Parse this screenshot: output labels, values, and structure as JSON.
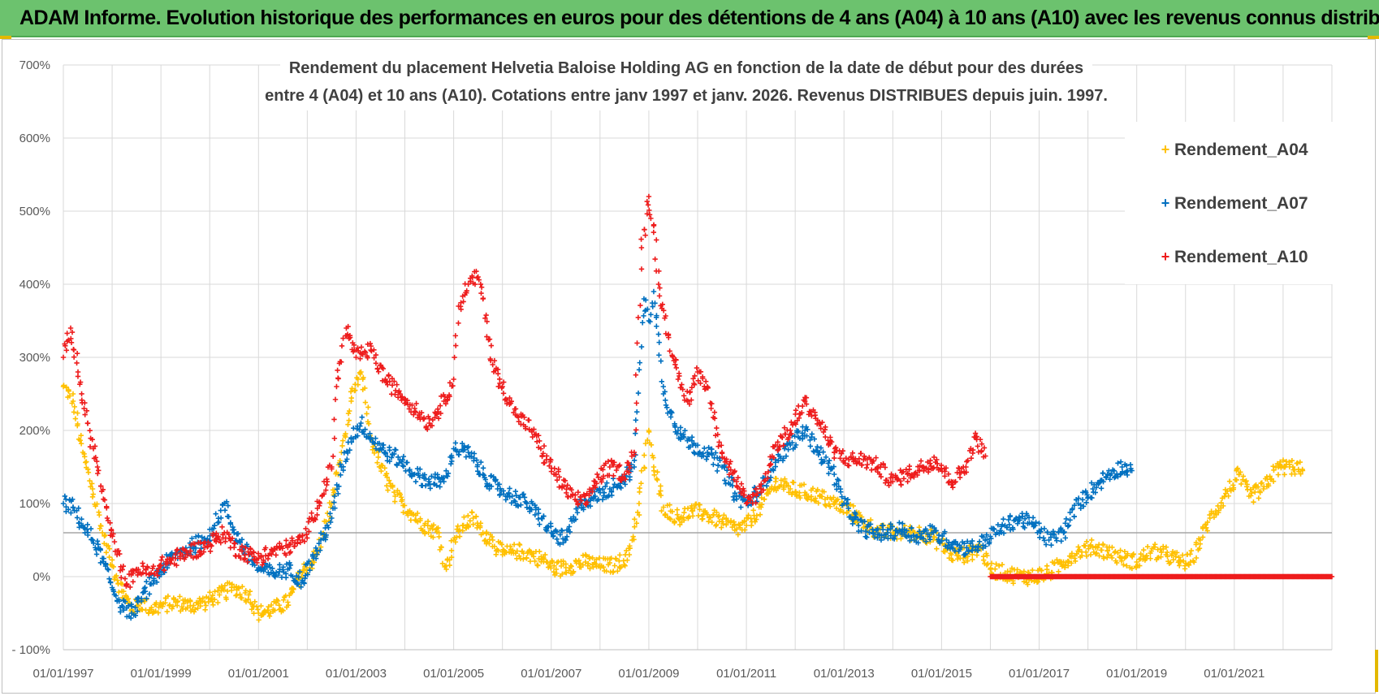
{
  "banner": {
    "title": "ADAM Informe. Evolution historique des performances en euros pour des détentions de 4 ans (A04) à 10 ans (A10) avec les revenus connus distribués"
  },
  "colors": {
    "banner_bg": "#6cc26e",
    "a04": "#ffc000",
    "a07": "#0070c0",
    "a10": "#ee1c1c",
    "grid": "#d9d9d9",
    "ref_line": "#a6a6a6"
  },
  "chart_data": {
    "type": "scatter",
    "title": "Rendement du placement Helvetia Baloise Holding AG en fonction de la date de début pour des durées",
    "subtitle": "entre 4 (A04) et 10 ans (A10).  Cotations entre janv 1997 et janv. 2026. Revenus DISTRIBUES depuis juin. 1997.",
    "xlabel": "",
    "ylabel": "",
    "xlim": [
      1997.0,
      2023.0
    ],
    "ylim": [
      -100,
      700
    ],
    "x_ticks": [
      "01/01/1997",
      "01/01/1999",
      "01/01/2001",
      "01/01/2003",
      "01/01/2005",
      "01/01/2007",
      "01/01/2009",
      "01/01/2011",
      "01/01/2013",
      "01/01/2015",
      "01/01/2017",
      "01/01/2019",
      "01/01/2021"
    ],
    "y_ticks": [
      "- 100%",
      "0%",
      "100%",
      "200%",
      "300%",
      "400%",
      "500%",
      "600%",
      "700%"
    ],
    "y_tick_values": [
      -100,
      0,
      100,
      200,
      300,
      400,
      500,
      600,
      700
    ],
    "reference_line_y": 60,
    "grid": true,
    "marker": "+",
    "legend_position": "top-right",
    "series": [
      {
        "name": "Rendement_A04",
        "color": "#ffc000",
        "points": [
          [
            1997.0,
            260
          ],
          [
            1997.2,
            240
          ],
          [
            1997.4,
            170
          ],
          [
            1997.6,
            120
          ],
          [
            1997.8,
            60
          ],
          [
            1998.0,
            15
          ],
          [
            1998.2,
            -20
          ],
          [
            1998.4,
            -45
          ],
          [
            1998.6,
            -35
          ],
          [
            1998.8,
            -45
          ],
          [
            1999.0,
            -40
          ],
          [
            1999.3,
            -35
          ],
          [
            1999.6,
            -40
          ],
          [
            1999.9,
            -35
          ],
          [
            2000.2,
            -25
          ],
          [
            2000.5,
            -15
          ],
          [
            2000.8,
            -25
          ],
          [
            2001.0,
            -50
          ],
          [
            2001.3,
            -45
          ],
          [
            2001.6,
            -35
          ],
          [
            2001.9,
            5
          ],
          [
            2002.2,
            30
          ],
          [
            2002.5,
            100
          ],
          [
            2002.7,
            170
          ],
          [
            2002.9,
            240
          ],
          [
            2003.1,
            280
          ],
          [
            2003.3,
            190
          ],
          [
            2003.5,
            150
          ],
          [
            2003.8,
            110
          ],
          [
            2004.1,
            90
          ],
          [
            2004.4,
            70
          ],
          [
            2004.7,
            60
          ],
          [
            2004.85,
            10
          ],
          [
            2005.0,
            50
          ],
          [
            2005.2,
            70
          ],
          [
            2005.4,
            80
          ],
          [
            2005.6,
            60
          ],
          [
            2005.8,
            50
          ],
          [
            2006.0,
            30
          ],
          [
            2006.3,
            35
          ],
          [
            2006.6,
            30
          ],
          [
            2006.9,
            20
          ],
          [
            2007.1,
            10
          ],
          [
            2007.4,
            15
          ],
          [
            2007.7,
            20
          ],
          [
            2008.0,
            15
          ],
          [
            2008.3,
            15
          ],
          [
            2008.6,
            30
          ],
          [
            2008.8,
            100
          ],
          [
            2009.0,
            200
          ],
          [
            2009.1,
            150
          ],
          [
            2009.3,
            95
          ],
          [
            2009.6,
            80
          ],
          [
            2009.9,
            90
          ],
          [
            2010.2,
            85
          ],
          [
            2010.5,
            75
          ],
          [
            2010.8,
            65
          ],
          [
            2011.0,
            70
          ],
          [
            2011.3,
            95
          ],
          [
            2011.6,
            130
          ],
          [
            2011.9,
            120
          ],
          [
            2012.2,
            115
          ],
          [
            2012.5,
            110
          ],
          [
            2012.8,
            100
          ],
          [
            2013.1,
            90
          ],
          [
            2013.4,
            75
          ],
          [
            2013.7,
            60
          ],
          [
            2014.0,
            60
          ],
          [
            2014.3,
            60
          ],
          [
            2014.6,
            60
          ],
          [
            2014.9,
            50
          ],
          [
            2015.2,
            30
          ],
          [
            2015.5,
            30
          ],
          [
            2015.8,
            40
          ],
          [
            2016.0,
            10
          ],
          [
            2016.3,
            5
          ],
          [
            2016.6,
            0
          ],
          [
            2016.9,
            0
          ],
          [
            2017.2,
            5
          ],
          [
            2017.5,
            20
          ],
          [
            2017.8,
            35
          ],
          [
            2018.1,
            40
          ],
          [
            2018.4,
            35
          ],
          [
            2018.7,
            25
          ],
          [
            2019.0,
            20
          ],
          [
            2019.3,
            35
          ],
          [
            2019.6,
            30
          ],
          [
            2019.9,
            20
          ],
          [
            2020.1,
            20
          ],
          [
            2020.3,
            50
          ],
          [
            2020.5,
            80
          ],
          [
            2020.8,
            110
          ],
          [
            2021.1,
            140
          ],
          [
            2021.3,
            110
          ],
          [
            2021.6,
            120
          ],
          [
            2021.9,
            150
          ],
          [
            2022.2,
            150
          ],
          [
            2022.4,
            145
          ]
        ]
      },
      {
        "name": "Rendement_A07",
        "color": "#0070c0",
        "points": [
          [
            1997.0,
            100
          ],
          [
            1997.2,
            95
          ],
          [
            1997.4,
            70
          ],
          [
            1997.6,
            50
          ],
          [
            1997.8,
            25
          ],
          [
            1998.0,
            -15
          ],
          [
            1998.2,
            -40
          ],
          [
            1998.4,
            -50
          ],
          [
            1998.6,
            -30
          ],
          [
            1998.8,
            -10
          ],
          [
            1999.0,
            10
          ],
          [
            1999.3,
            30
          ],
          [
            1999.6,
            40
          ],
          [
            1999.9,
            50
          ],
          [
            2000.1,
            70
          ],
          [
            2000.3,
            100
          ],
          [
            2000.5,
            60
          ],
          [
            2000.8,
            30
          ],
          [
            2001.0,
            10
          ],
          [
            2001.3,
            5
          ],
          [
            2001.6,
            10
          ],
          [
            2001.9,
            -5
          ],
          [
            2002.2,
            35
          ],
          [
            2002.5,
            80
          ],
          [
            2002.7,
            150
          ],
          [
            2002.9,
            190
          ],
          [
            2003.1,
            210
          ],
          [
            2003.3,
            190
          ],
          [
            2003.6,
            170
          ],
          [
            2003.9,
            160
          ],
          [
            2004.2,
            140
          ],
          [
            2004.5,
            130
          ],
          [
            2004.8,
            130
          ],
          [
            2005.0,
            175
          ],
          [
            2005.3,
            170
          ],
          [
            2005.6,
            140
          ],
          [
            2005.9,
            120
          ],
          [
            2006.2,
            110
          ],
          [
            2006.5,
            100
          ],
          [
            2006.8,
            80
          ],
          [
            2007.0,
            60
          ],
          [
            2007.3,
            50
          ],
          [
            2007.6,
            100
          ],
          [
            2007.9,
            110
          ],
          [
            2008.2,
            120
          ],
          [
            2008.5,
            135
          ],
          [
            2008.7,
            150
          ],
          [
            2008.9,
            380
          ],
          [
            2009.0,
            350
          ],
          [
            2009.1,
            390
          ],
          [
            2009.3,
            250
          ],
          [
            2009.6,
            200
          ],
          [
            2009.9,
            180
          ],
          [
            2010.2,
            170
          ],
          [
            2010.5,
            150
          ],
          [
            2010.8,
            110
          ],
          [
            2011.0,
            100
          ],
          [
            2011.3,
            120
          ],
          [
            2011.6,
            160
          ],
          [
            2011.9,
            180
          ],
          [
            2012.2,
            200
          ],
          [
            2012.5,
            170
          ],
          [
            2012.8,
            140
          ],
          [
            2013.0,
            100
          ],
          [
            2013.3,
            70
          ],
          [
            2013.6,
            60
          ],
          [
            2013.9,
            60
          ],
          [
            2014.2,
            65
          ],
          [
            2014.5,
            55
          ],
          [
            2014.8,
            60
          ],
          [
            2015.1,
            50
          ],
          [
            2015.4,
            40
          ],
          [
            2015.7,
            40
          ],
          [
            2016.0,
            55
          ],
          [
            2016.3,
            70
          ],
          [
            2016.6,
            80
          ],
          [
            2016.9,
            70
          ],
          [
            2017.2,
            50
          ],
          [
            2017.5,
            60
          ],
          [
            2017.8,
            100
          ],
          [
            2018.1,
            120
          ],
          [
            2018.4,
            140
          ],
          [
            2018.7,
            150
          ],
          [
            2018.9,
            145
          ]
        ]
      },
      {
        "name": "Rendement_A10",
        "color": "#ee1c1c",
        "points": [
          [
            1997.0,
            300
          ],
          [
            1997.15,
            340
          ],
          [
            1997.3,
            280
          ],
          [
            1997.5,
            210
          ],
          [
            1997.7,
            150
          ],
          [
            1997.9,
            80
          ],
          [
            1998.1,
            30
          ],
          [
            1998.3,
            -10
          ],
          [
            1998.5,
            10
          ],
          [
            1998.8,
            5
          ],
          [
            1999.0,
            15
          ],
          [
            1999.3,
            25
          ],
          [
            1999.6,
            35
          ],
          [
            1999.9,
            40
          ],
          [
            2000.1,
            50
          ],
          [
            2000.3,
            60
          ],
          [
            2000.5,
            40
          ],
          [
            2000.8,
            30
          ],
          [
            2001.0,
            25
          ],
          [
            2001.3,
            35
          ],
          [
            2001.6,
            40
          ],
          [
            2001.9,
            50
          ],
          [
            2002.1,
            80
          ],
          [
            2002.3,
            110
          ],
          [
            2002.5,
            150
          ],
          [
            2002.6,
            260
          ],
          [
            2002.8,
            340
          ],
          [
            2003.0,
            300
          ],
          [
            2003.3,
            310
          ],
          [
            2003.6,
            270
          ],
          [
            2003.9,
            250
          ],
          [
            2004.2,
            230
          ],
          [
            2004.5,
            210
          ],
          [
            2004.8,
            240
          ],
          [
            2005.0,
            270
          ],
          [
            2005.1,
            370
          ],
          [
            2005.3,
            400
          ],
          [
            2005.5,
            410
          ],
          [
            2005.6,
            380
          ],
          [
            2005.8,
            290
          ],
          [
            2006.0,
            260
          ],
          [
            2006.3,
            220
          ],
          [
            2006.6,
            200
          ],
          [
            2006.9,
            160
          ],
          [
            2007.1,
            140
          ],
          [
            2007.4,
            110
          ],
          [
            2007.7,
            100
          ],
          [
            2007.9,
            130
          ],
          [
            2008.2,
            150
          ],
          [
            2008.5,
            140
          ],
          [
            2008.7,
            170
          ],
          [
            2008.85,
            450
          ],
          [
            2009.0,
            520
          ],
          [
            2009.1,
            480
          ],
          [
            2009.2,
            400
          ],
          [
            2009.4,
            330
          ],
          [
            2009.6,
            270
          ],
          [
            2009.8,
            240
          ],
          [
            2010.0,
            280
          ],
          [
            2010.2,
            260
          ],
          [
            2010.5,
            170
          ],
          [
            2010.8,
            130
          ],
          [
            2011.0,
            100
          ],
          [
            2011.3,
            120
          ],
          [
            2011.6,
            180
          ],
          [
            2011.9,
            200
          ],
          [
            2012.2,
            240
          ],
          [
            2012.5,
            210
          ],
          [
            2012.8,
            170
          ],
          [
            2013.1,
            160
          ],
          [
            2013.4,
            160
          ],
          [
            2013.7,
            150
          ],
          [
            2014.0,
            130
          ],
          [
            2014.3,
            140
          ],
          [
            2014.6,
            150
          ],
          [
            2014.9,
            160
          ],
          [
            2015.2,
            130
          ],
          [
            2015.5,
            150
          ],
          [
            2015.7,
            190
          ],
          [
            2015.9,
            165
          ]
        ]
      }
    ],
    "flat_segment": {
      "series": "Rendement_A10",
      "x_start": 2016.0,
      "x_end": 2023.0,
      "y": 0
    }
  }
}
